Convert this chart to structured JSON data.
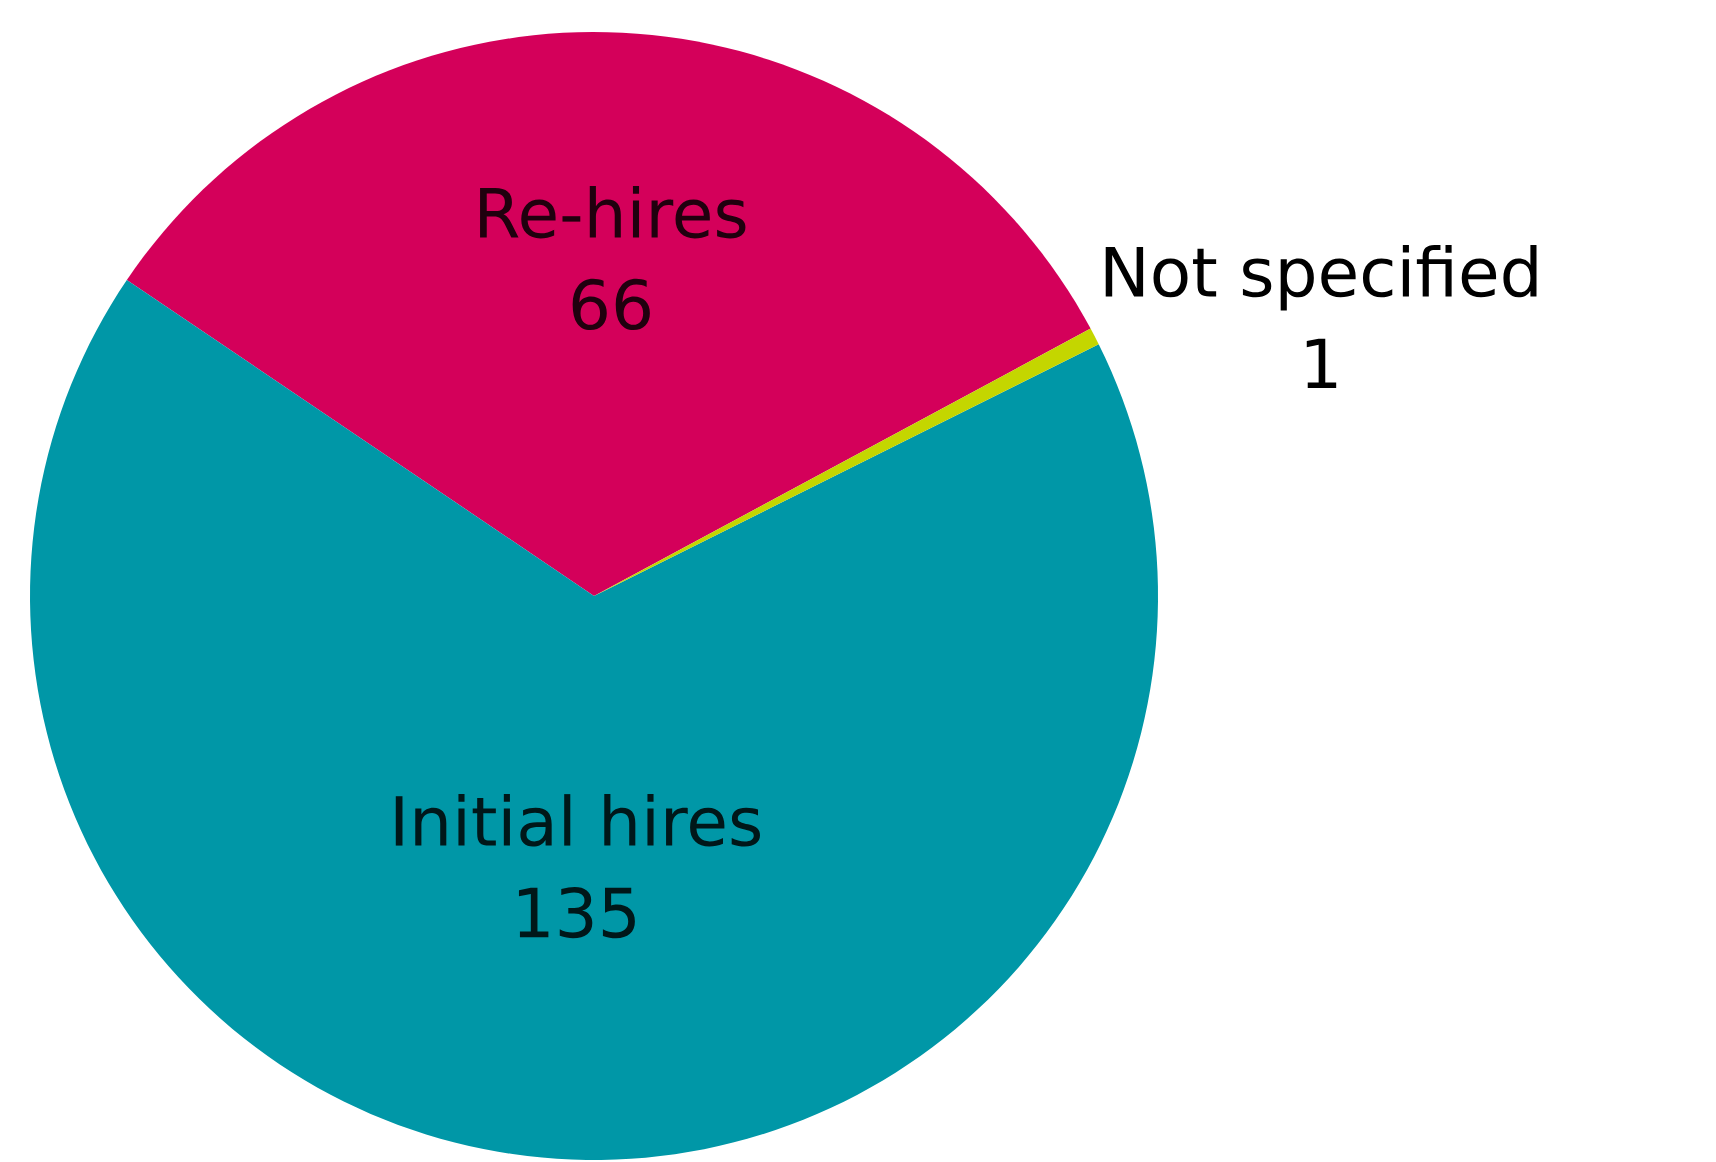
{
  "chart_data": {
    "type": "pie",
    "categories": [
      "Re-hires",
      "Initial hires",
      "Not specified"
    ],
    "values": [
      66,
      135,
      1
    ],
    "colors": [
      "#d4005a",
      "#0097a7",
      "#c4d600"
    ],
    "data_labels": true
  }
}
